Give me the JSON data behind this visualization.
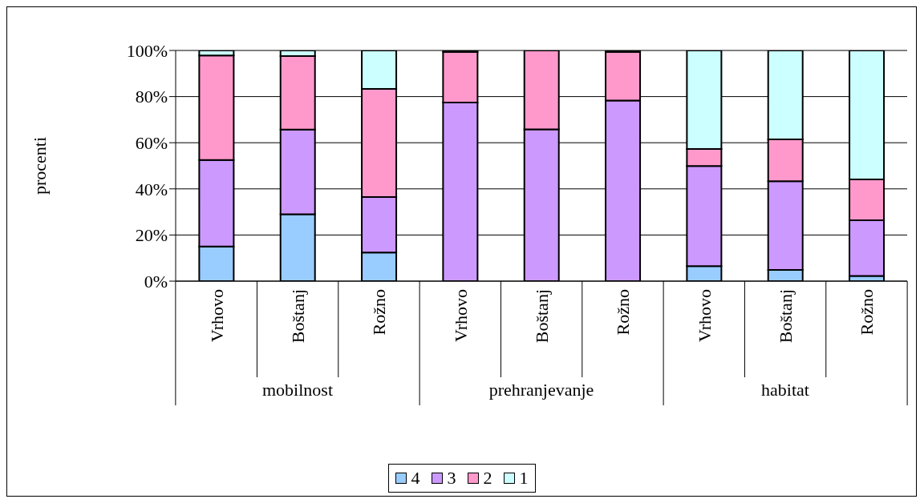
{
  "chart_data": {
    "type": "bar",
    "stacked": true,
    "ylabel": "procenti",
    "categories": [
      "Vrhovo",
      "Boštanj",
      "Rožno",
      "Vrhovo",
      "Boštanj",
      "Rožno",
      "Vrhovo",
      "Boštanj",
      "Rožno"
    ],
    "annotations": [
      "mobilnost",
      "prehranjevanje",
      "habitat"
    ],
    "series": [
      {
        "name": "4",
        "color": "#99ccff",
        "values": [
          15,
          29,
          12.4,
          0,
          0,
          0,
          6.5,
          4.9,
          2.3
        ]
      },
      {
        "name": "3",
        "color": "#cc99ff",
        "values": [
          37.5,
          36.7,
          24.1,
          77.4,
          65.8,
          78.3,
          43.4,
          38.4,
          24.1
        ]
      },
      {
        "name": "2",
        "color": "#ff99cc",
        "values": [
          45.3,
          31.9,
          46.8,
          22,
          34.2,
          21.1,
          7.4,
          18.2,
          17.7
        ]
      },
      {
        "name": "1",
        "color": "#ccffff",
        "values": [
          2.4,
          2.4,
          16.7,
          0.6,
          0,
          0.6,
          42.7,
          38.5,
          55.9
        ]
      }
    ],
    "ylim": [
      0,
      100
    ],
    "yticks": [
      {
        "value": 0,
        "label": "0%"
      },
      {
        "value": 20,
        "label": "20%"
      },
      {
        "value": 40,
        "label": "40%"
      },
      {
        "value": 60,
        "label": "60%"
      },
      {
        "value": 80,
        "label": "80%"
      },
      {
        "value": 100,
        "label": "100%"
      }
    ],
    "grid": "y",
    "legend": "bottom"
  }
}
